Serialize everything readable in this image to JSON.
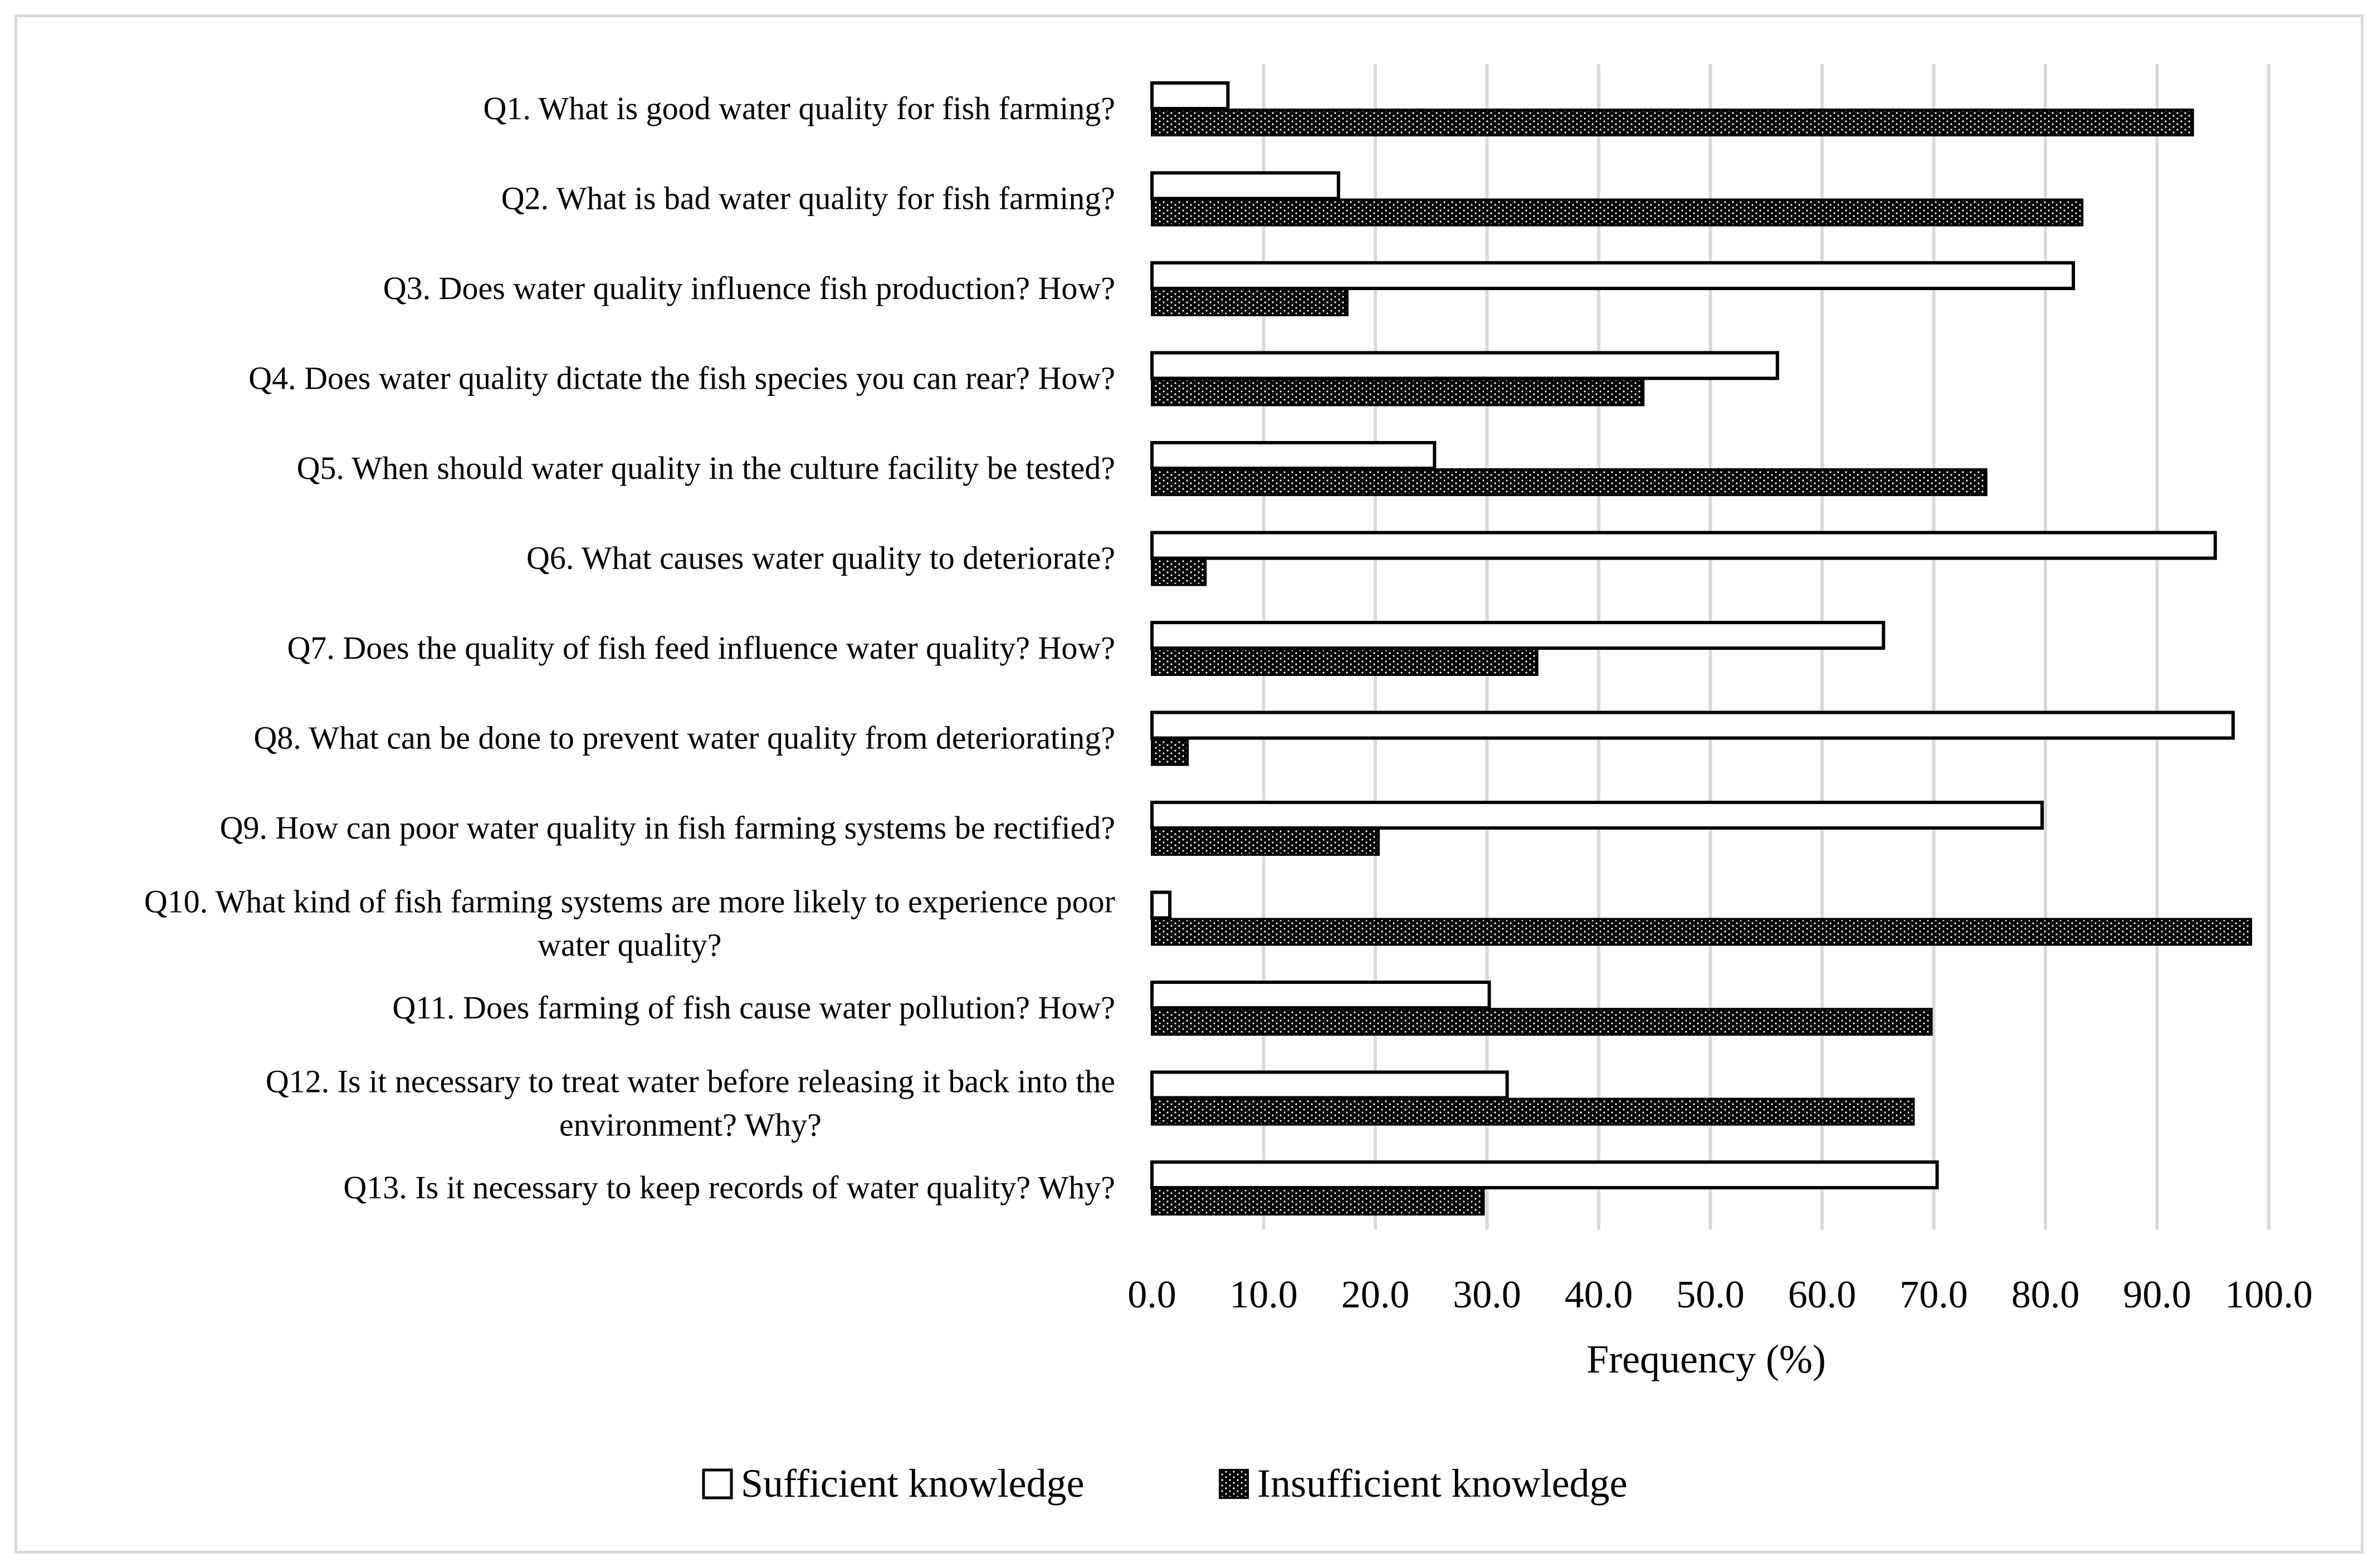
{
  "chart_data": {
    "type": "bar",
    "orientation": "horizontal",
    "categories": [
      [
        "Q1.  What is good water quality for fish farming?"
      ],
      [
        "Q2. What is bad water quality for fish farming?"
      ],
      [
        "Q3. Does water quality influence fish production? How?"
      ],
      [
        "Q4. Does water quality dictate the fish species you can rear? How?"
      ],
      [
        "Q5. When should water quality in the culture facility be tested?"
      ],
      [
        "Q6. What causes water quality to deteriorate?"
      ],
      [
        "Q7. Does the quality of fish feed influence water quality? How?"
      ],
      [
        "Q8. What can be done to prevent water quality from deteriorating?"
      ],
      [
        "Q9. How can poor water quality in fish farming systems be rectified?"
      ],
      [
        "Q10. What kind of fish farming systems are more likely to experience poor",
        "water quality?"
      ],
      [
        "Q11. Does farming of fish cause water pollution? How?"
      ],
      [
        "Q12. Is it necessary to treat water before releasing it back into the",
        "environment? Why?"
      ],
      [
        "Q13. Is it necessary to keep records of water quality? Why?"
      ]
    ],
    "series": [
      {
        "name": "Sufficient knowledge",
        "pattern": "white-fill-outline",
        "values": [
          6.8,
          16.7,
          82.5,
          56.0,
          25.3,
          95.2,
          65.5,
          96.8,
          79.7,
          1.6,
          30.2,
          31.8,
          70.3
        ]
      },
      {
        "name": "Insufficient knowledge",
        "pattern": "black-dotted",
        "values": [
          93.2,
          83.3,
          17.5,
          44.0,
          74.7,
          4.8,
          34.5,
          3.2,
          20.3,
          98.4,
          69.8,
          68.2,
          29.7
        ]
      }
    ],
    "xlabel": "Frequency (%)",
    "ylabel": "",
    "xlim": [
      0,
      100
    ],
    "x_ticks": [
      "0.0",
      "10.0",
      "20.0",
      "30.0",
      "40.0",
      "50.0",
      "60.0",
      "70.0",
      "80.0",
      "90.0",
      "100.0"
    ],
    "grid": "vertical",
    "legend_position": "bottom",
    "colors": {
      "grid": "#d9d9d9",
      "bar_outline": "#000000",
      "insufficient_fill": "#000000",
      "dot": "#ffffff",
      "frame": "#d9d9d9"
    }
  }
}
